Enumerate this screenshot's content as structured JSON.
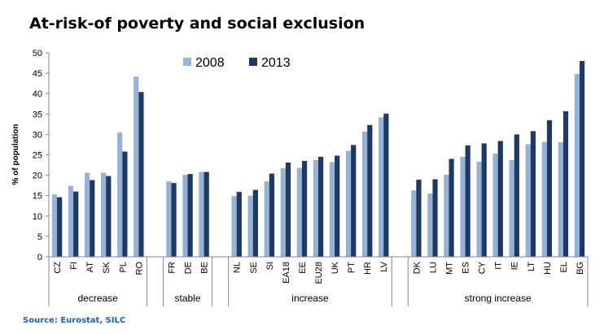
{
  "title": "At-risk-of poverty and social exclusion",
  "source": "Source: Eurostat, SILC",
  "colors": {
    "series_2008": "#95b3d7",
    "series_2013": "#1f3864",
    "axis": "#868686"
  },
  "chart_data": {
    "type": "bar",
    "title": "At-risk-of poverty and social exclusion",
    "ylabel": "% of population",
    "xlabel": "",
    "ylim": [
      0,
      50
    ],
    "yticks": [
      0,
      5,
      10,
      15,
      20,
      25,
      30,
      35,
      40,
      45,
      50
    ],
    "grid": false,
    "legend": "top-left",
    "categories": [
      "CZ",
      "FI",
      "AT",
      "SK",
      "PL",
      "RO",
      "",
      "FR",
      "DE",
      "BE",
      "",
      "NL",
      "SE",
      "SI",
      "EA18",
      "EE",
      "EU28",
      "UK",
      "PT",
      "HR",
      "LV",
      "",
      "DK",
      "LU",
      "MT",
      "ES",
      "CY",
      "IT",
      "IE",
      "LT",
      "HU",
      "EL",
      "BG"
    ],
    "groups": [
      {
        "label": "decrease",
        "start": 0,
        "end": 6
      },
      {
        "label": "stable",
        "start": 7,
        "end": 10
      },
      {
        "label": "increase",
        "start": 11,
        "end": 21
      },
      {
        "label": "strong increase",
        "start": 22,
        "end": 33
      }
    ],
    "series": [
      {
        "name": "2008",
        "values": [
          15.3,
          17.4,
          20.6,
          20.6,
          30.5,
          44.2,
          null,
          18.5,
          20.1,
          20.8,
          null,
          14.9,
          15.0,
          18.5,
          21.7,
          21.8,
          23.7,
          23.2,
          26.0,
          30.7,
          34.2,
          null,
          16.3,
          15.5,
          20.1,
          24.5,
          23.3,
          25.3,
          23.7,
          27.6,
          28.2,
          28.1,
          44.8
        ]
      },
      {
        "name": "2013",
        "values": [
          14.6,
          16.0,
          18.8,
          19.8,
          25.8,
          40.4,
          null,
          18.1,
          20.3,
          20.8,
          null,
          15.9,
          16.4,
          20.4,
          23.1,
          23.5,
          24.5,
          24.8,
          27.4,
          32.3,
          35.1,
          null,
          18.9,
          19.0,
          24.0,
          27.3,
          27.8,
          28.4,
          30.0,
          30.8,
          33.5,
          35.7,
          48.0
        ]
      }
    ]
  }
}
